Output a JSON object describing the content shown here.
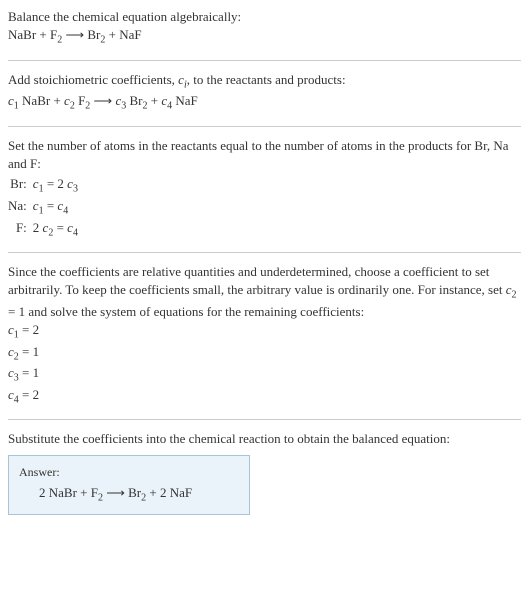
{
  "colors": {
    "text": "#333333",
    "hr": "#cccccc",
    "answer_border": "#a8c4d8",
    "answer_bg": "#eaf3f9",
    "background": "#ffffff"
  },
  "typography": {
    "body_fontsize": 13,
    "sub_fontsize": 10,
    "answer_title_fontsize": 12
  },
  "s1": {
    "line1": "Balance the chemical equation algebraically:",
    "eq_parts": [
      "NaBr + F",
      "2",
      "  ⟶  Br",
      "2",
      " + NaF"
    ]
  },
  "s2": {
    "line1a": "Add stoichiometric coefficients, ",
    "line1b_i": "c",
    "line1b_sub_i": "i",
    "line1c": ", to the reactants and products:",
    "eq": [
      "c",
      "1",
      " NaBr + ",
      "c",
      "2",
      " F",
      "2",
      "  ⟶  ",
      "c",
      "3",
      " Br",
      "2",
      " + ",
      "c",
      "4",
      " NaF"
    ]
  },
  "s3": {
    "line1": "Set the number of atoms in the reactants equal to the number of atoms in the products for Br, Na and F:",
    "rows": [
      {
        "label": "Br:",
        "eq": [
          "c",
          "1",
          " = 2 ",
          "c",
          "3"
        ]
      },
      {
        "label": "Na:",
        "eq": [
          "c",
          "1",
          " = ",
          "c",
          "4"
        ]
      },
      {
        "label": "F:",
        "eq": [
          "2 ",
          "c",
          "2",
          " = ",
          "c",
          "4"
        ]
      }
    ]
  },
  "s4": {
    "line1a": "Since the coefficients are relative quantities and underdetermined, choose a coefficient to set arbitrarily. To keep the coefficients small, the arbitrary value is ordinarily one. For instance, set ",
    "line1b_i": "c",
    "line1b_sub": "2",
    "line1c": " = 1 and solve the system of equations for the remaining coefficients:",
    "rows": [
      {
        "eq": [
          "c",
          "1",
          " = 2"
        ]
      },
      {
        "eq": [
          "c",
          "2",
          " = 1"
        ]
      },
      {
        "eq": [
          "c",
          "3",
          " = 1"
        ]
      },
      {
        "eq": [
          "c",
          "4",
          " = 2"
        ]
      }
    ]
  },
  "s5": {
    "line1": "Substitute the coefficients into the chemical reaction to obtain the balanced equation:",
    "answer_title": "Answer:",
    "answer_eq": [
      "2 NaBr + F",
      "2",
      "  ⟶  Br",
      "2",
      " + 2 NaF"
    ]
  }
}
